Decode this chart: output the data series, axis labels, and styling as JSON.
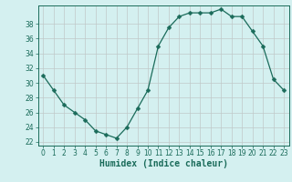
{
  "x": [
    0,
    1,
    2,
    3,
    4,
    5,
    6,
    7,
    8,
    9,
    10,
    11,
    12,
    13,
    14,
    15,
    16,
    17,
    18,
    19,
    20,
    21,
    22,
    23
  ],
  "y": [
    31,
    29,
    27,
    26,
    25,
    23.5,
    23,
    22.5,
    24,
    26.5,
    29,
    35,
    37.5,
    39,
    39.5,
    39.5,
    39.5,
    40,
    39,
    39,
    37,
    35,
    30.5,
    29
  ],
  "line_color": "#1a6b5a",
  "marker": "D",
  "marker_size": 2.5,
  "bg_color": "#d4f0f0",
  "grid_color": "#c0c8c8",
  "xlabel": "Humidex (Indice chaleur)",
  "xlim": [
    -0.5,
    23.5
  ],
  "ylim": [
    21.5,
    40.5
  ],
  "yticks": [
    22,
    24,
    26,
    28,
    30,
    32,
    34,
    36,
    38
  ],
  "xticks": [
    0,
    1,
    2,
    3,
    4,
    5,
    6,
    7,
    8,
    9,
    10,
    11,
    12,
    13,
    14,
    15,
    16,
    17,
    18,
    19,
    20,
    21,
    22,
    23
  ],
  "tick_label_fontsize": 5.5,
  "xlabel_fontsize": 7.0
}
